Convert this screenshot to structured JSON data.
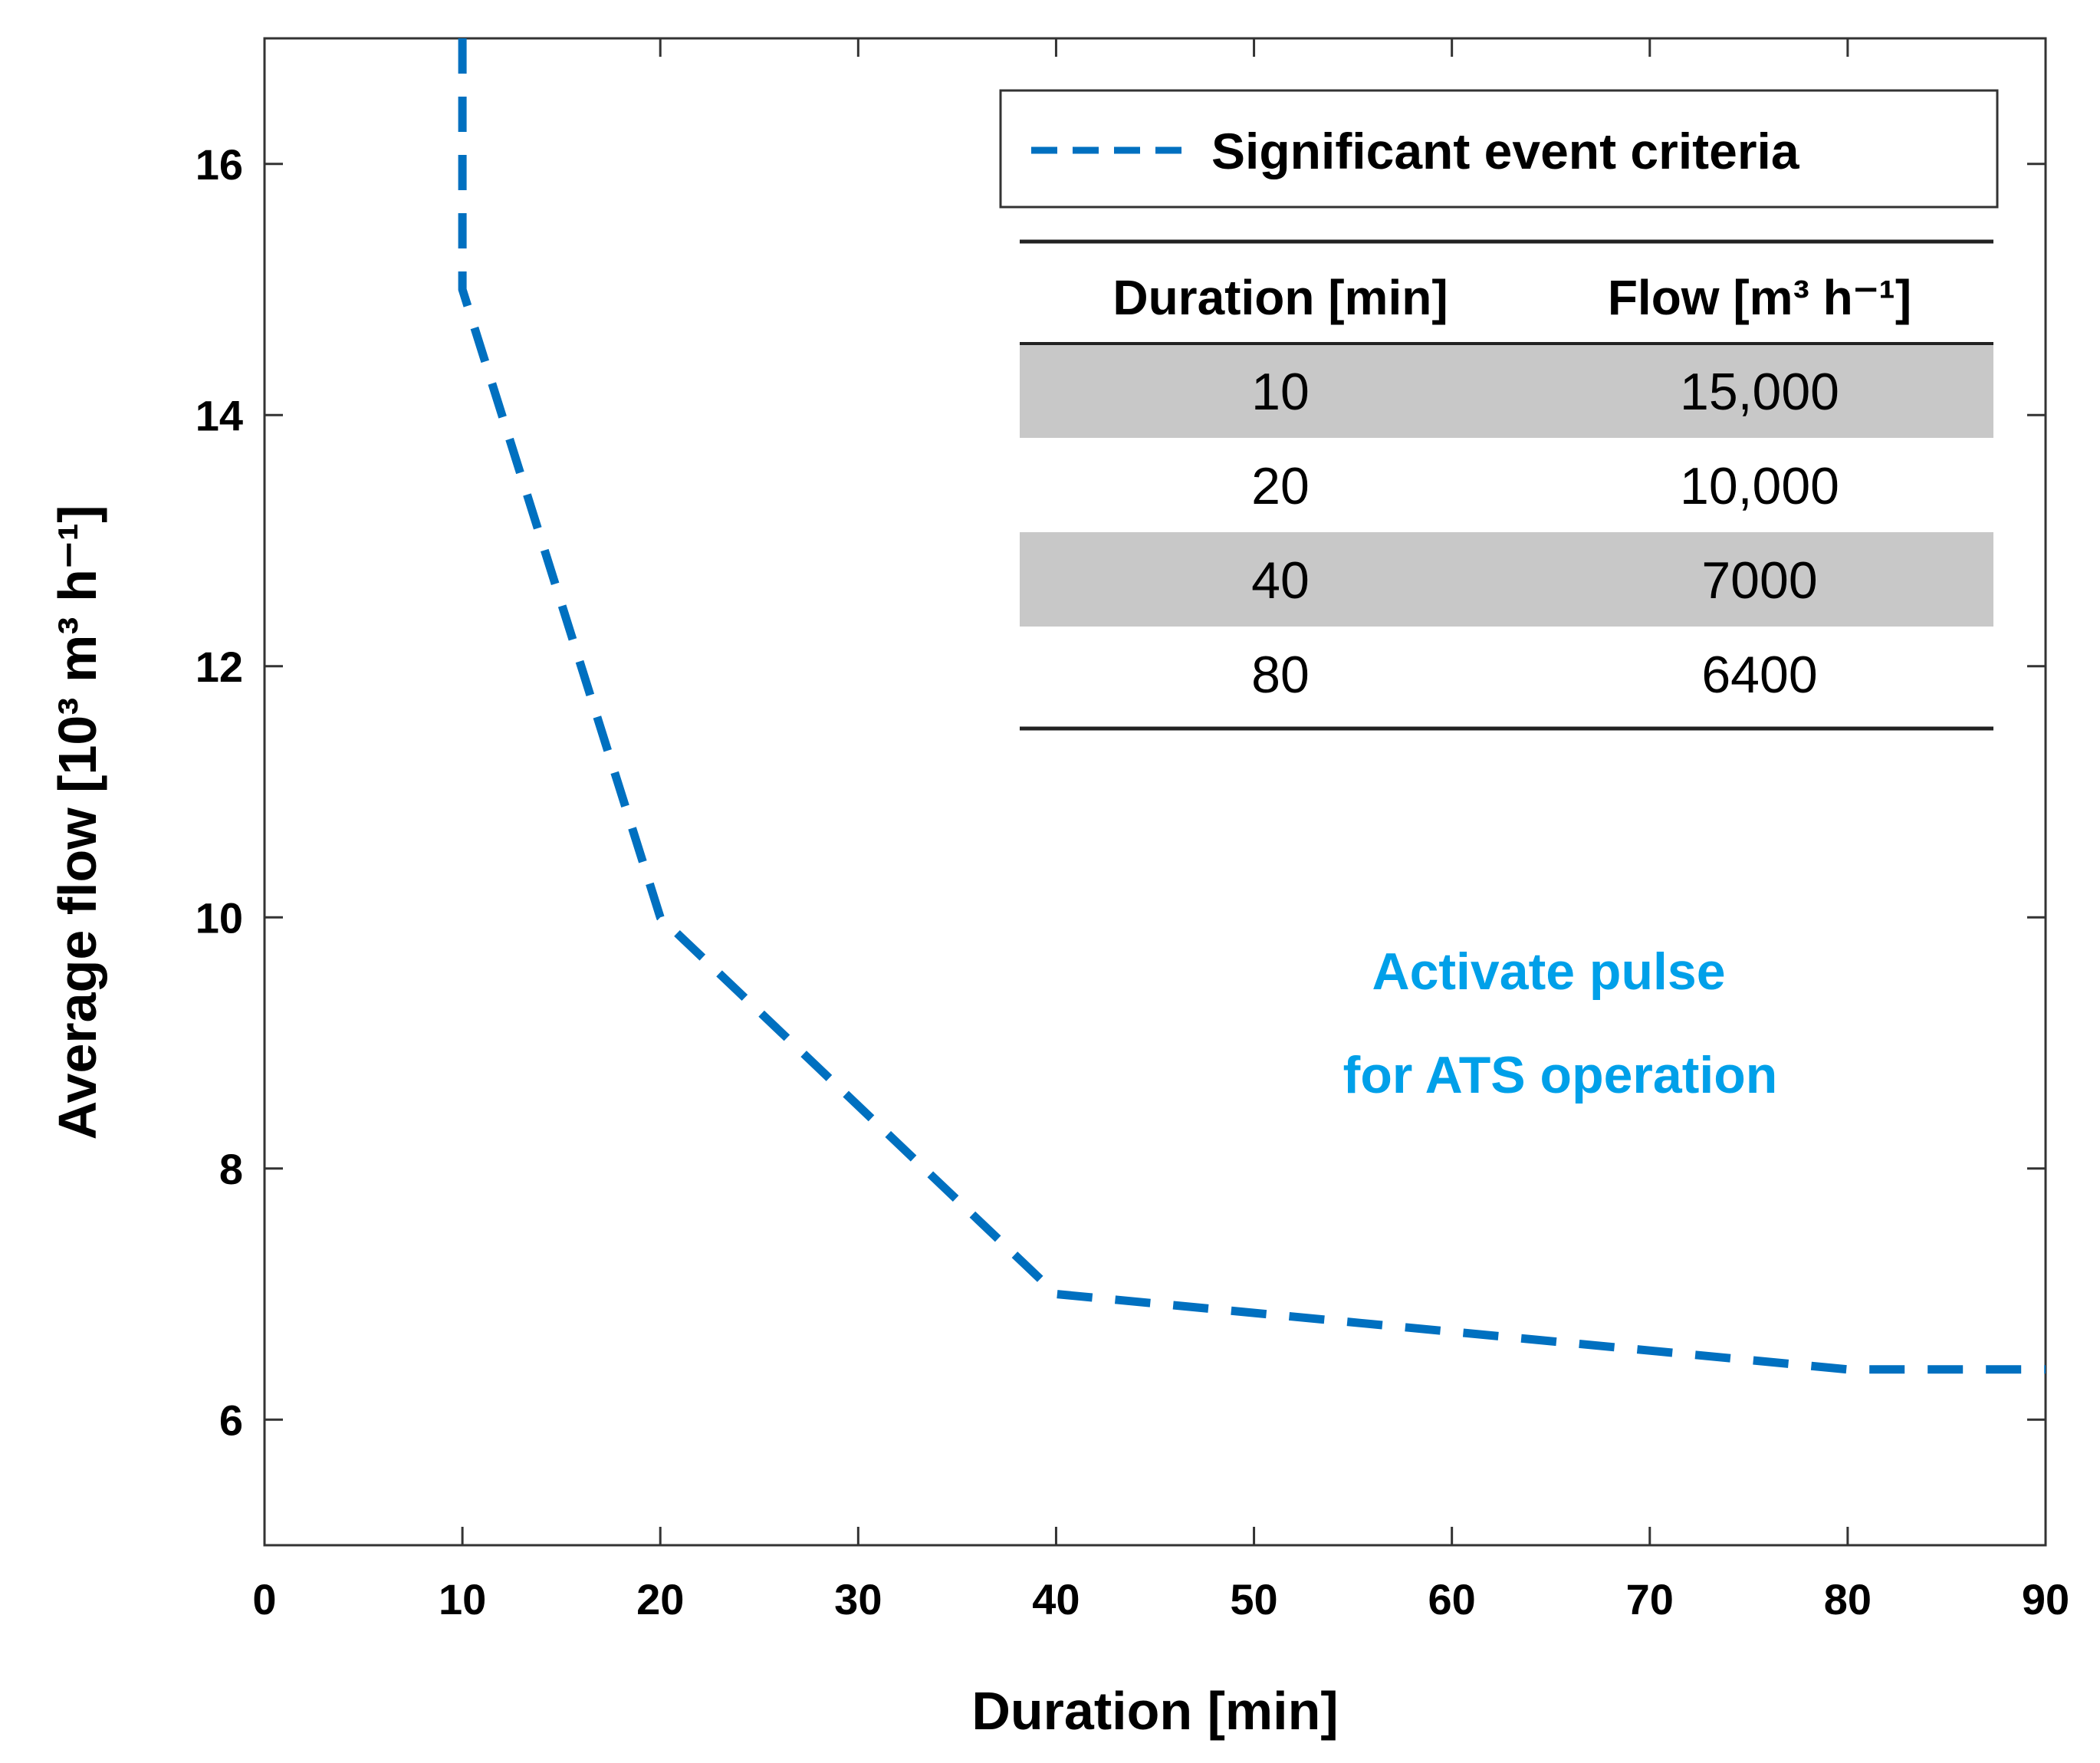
{
  "chart_data": {
    "type": "line",
    "xlabel": "Duration [min]",
    "ylabel": "Average flow [10³ m³ h⁻¹]",
    "xlim": [
      0,
      90
    ],
    "ylim": [
      5,
      17
    ],
    "xticks": [
      "0",
      "10",
      "20",
      "30",
      "40",
      "50",
      "60",
      "70",
      "80",
      "90"
    ],
    "yticks": [
      "6",
      "8",
      "10",
      "12",
      "14",
      "16"
    ],
    "grid": false,
    "legend_position": "top-right",
    "series": [
      {
        "name": "Significant event criteria",
        "color": "#0070C0",
        "line_style": "dashed",
        "x": [
          10,
          10,
          20,
          40,
          80,
          90
        ],
        "y": [
          17,
          15,
          10,
          7,
          6.4,
          6.4
        ]
      }
    ],
    "table": {
      "headers": [
        "Duration [min]",
        "Flow [m³ h⁻¹]"
      ],
      "rows": [
        [
          "10",
          "15,000"
        ],
        [
          "20",
          "10,000"
        ],
        [
          "40",
          "7000"
        ],
        [
          "80",
          "6400"
        ]
      ],
      "shaded_rows": [
        0,
        2
      ],
      "shade_color": "#C8C8C8"
    },
    "annotation": {
      "lines": [
        "Activate pulse",
        "for ATS operation"
      ],
      "color": "#00A0E9"
    }
  }
}
